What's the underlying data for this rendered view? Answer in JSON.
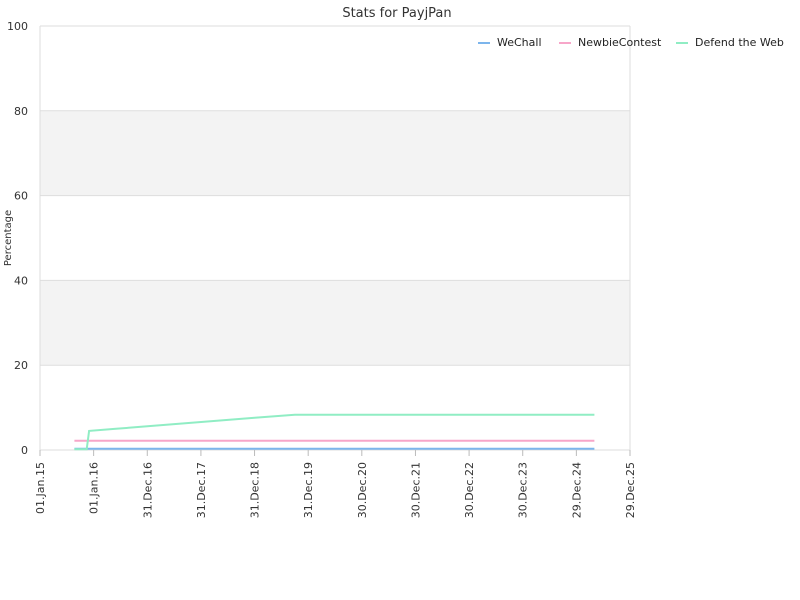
{
  "chart_data": {
    "type": "line",
    "title": "Stats for PayjPan",
    "xlabel": "",
    "ylabel": "Percentage",
    "ylim": [
      0,
      100
    ],
    "y_ticks": [
      0,
      20,
      40,
      60,
      80,
      100
    ],
    "x_ticks": [
      "01.Jan.15",
      "01.Jan.16",
      "31.Dec.16",
      "31.Dec.17",
      "31.Dec.18",
      "31.Dec.19",
      "30.Dec.20",
      "30.Dec.21",
      "30.Dec.22",
      "30.Dec.23",
      "29.Dec.24",
      "29.Dec.25"
    ],
    "grid": true,
    "alternating_bands": true,
    "legend_position": "top-right",
    "series": [
      {
        "name": "WeChall",
        "color": "#7cb5ec",
        "points": [
          [
            "2015-08-23",
            0.3
          ],
          [
            "2025-05-01",
            0.3
          ]
        ]
      },
      {
        "name": "NewbieContest",
        "color": "#f7a6c9",
        "points": [
          [
            "2015-08-23",
            2.2
          ],
          [
            "2025-05-01",
            2.2
          ]
        ]
      },
      {
        "name": "Defend the Web",
        "color": "#90ed C4",
        "points": [
          [
            "2015-08-23",
            0.2
          ],
          [
            "2015-11-15",
            0.2
          ],
          [
            "2015-12-01",
            4.5
          ],
          [
            "2016-06-01",
            5.0
          ],
          [
            "2017-01-01",
            5.6
          ],
          [
            "2018-01-01",
            6.6
          ],
          [
            "2019-01-01",
            7.6
          ],
          [
            "2019-10-01",
            8.3
          ],
          [
            "2025-05-01",
            8.3
          ]
        ]
      }
    ]
  }
}
